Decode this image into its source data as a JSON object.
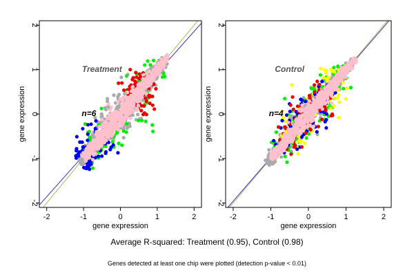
{
  "chart_data": [
    {
      "type": "scatter",
      "panel_label": "Treatment",
      "n_label": "n=6",
      "xlabel": "gene expression",
      "ylabel": "gene expression",
      "xlim": [
        -2.2,
        2.2
      ],
      "ylim": [
        -2.1,
        2.1
      ],
      "xticks": [
        -2,
        -1,
        0,
        1,
        2
      ],
      "yticks": [
        -2,
        -1,
        0,
        1,
        2
      ],
      "reference_lines": [
        {
          "name": "identity",
          "color": "#b5b35c",
          "slope": 1.0,
          "intercept": 0.0
        },
        {
          "name": "fit",
          "color": "#3333cc",
          "slope": 0.93,
          "intercept": 0.0
        }
      ],
      "series": [
        {
          "color": "#aaaaaa",
          "role": "bulk",
          "x_range": [
            -1.1,
            1.2
          ],
          "spread": 0.26
        },
        {
          "color": "#00ee00",
          "role": "outer",
          "x_range": [
            -1.0,
            1.1
          ],
          "spread": 0.4
        },
        {
          "color": "#0000ee",
          "role": "outer",
          "x_range": [
            -1.1,
            -0.4
          ],
          "spread": 0.35
        },
        {
          "color": "#ee0000",
          "role": "outer",
          "x_range": [
            0.3,
            0.8
          ],
          "spread": 0.35
        },
        {
          "color": "#ffc0cb",
          "role": "core",
          "x_range": [
            -1.0,
            1.3
          ],
          "spread": 0.18
        }
      ],
      "grid": false
    },
    {
      "type": "scatter",
      "panel_label": "Control",
      "n_label": "n=4",
      "xlabel": "gene expression",
      "ylabel": "gene expression",
      "xlim": [
        -2.2,
        2.2
      ],
      "ylim": [
        -2.1,
        2.1
      ],
      "xticks": [
        -2,
        -1,
        0,
        1,
        2
      ],
      "yticks": [
        -2,
        -1,
        0,
        1,
        2
      ],
      "reference_lines": [
        {
          "name": "identity",
          "color": "#b5b35c",
          "slope": 1.0,
          "intercept": 0.0
        },
        {
          "name": "fit",
          "color": "#3333cc",
          "slope": 0.98,
          "intercept": 0.0
        }
      ],
      "series": [
        {
          "color": "#aaaaaa",
          "role": "bulk",
          "x_range": [
            -1.1,
            1.2
          ],
          "spread": 0.2
        },
        {
          "color": "#00ee00",
          "role": "outer",
          "x_range": [
            -0.9,
            1.0
          ],
          "spread": 0.32
        },
        {
          "color": "#ffff00",
          "role": "outer",
          "x_range": [
            -0.6,
            0.9
          ],
          "spread": 0.38
        },
        {
          "color": "#0000ee",
          "role": "outer",
          "x_range": [
            -0.8,
            0.6
          ],
          "spread": 0.3
        },
        {
          "color": "#ee0000",
          "role": "outer",
          "x_range": [
            -0.7,
            0.5
          ],
          "spread": 0.3
        },
        {
          "color": "#ffc0cb",
          "role": "core",
          "x_range": [
            -1.0,
            1.25
          ],
          "spread": 0.14
        }
      ],
      "grid": false
    }
  ],
  "caption": "Average R-squared: Treatment (0.95), Control (0.98)",
  "footnote": "Genes detected at least one chip were plotted (detection p-value < 0.01)"
}
